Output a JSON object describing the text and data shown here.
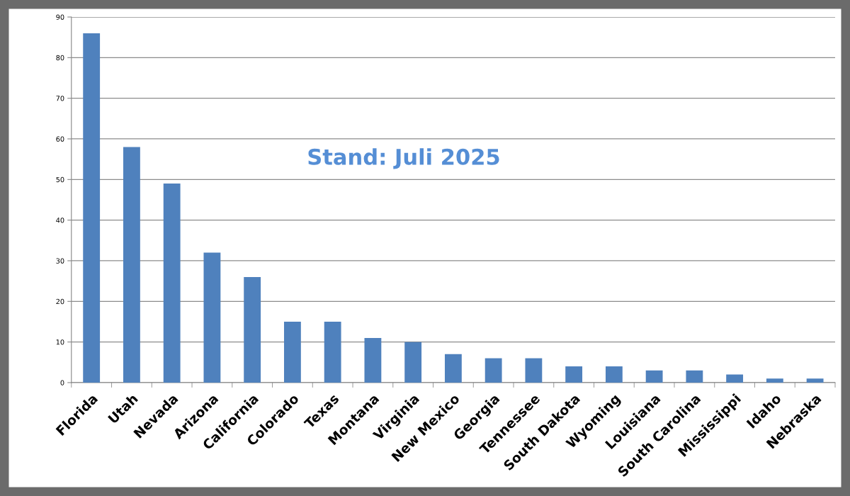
{
  "chart_data": {
    "type": "bar",
    "categories": [
      "Florida",
      "Utah",
      "Nevada",
      "Arizona",
      "California",
      "Colorado",
      "Texas",
      "Montana",
      "Virginia",
      "New Mexico",
      "Georgia",
      "Tennessee",
      "South Dakota",
      "Wyoming",
      "Louisiana",
      "South Carolina",
      "Mississippi",
      "Idaho",
      "Nebraska"
    ],
    "values": [
      86,
      58,
      49,
      32,
      26,
      15,
      15,
      11,
      10,
      7,
      6,
      6,
      4,
      4,
      3,
      3,
      2,
      1,
      1
    ],
    "color": "#4f81bd",
    "ylim": [
      0,
      90
    ],
    "yticks": [
      0,
      10,
      20,
      30,
      40,
      50,
      60,
      70,
      80,
      90
    ],
    "grid": "y",
    "annotations": [
      "Stand: Juli 2025"
    ]
  }
}
